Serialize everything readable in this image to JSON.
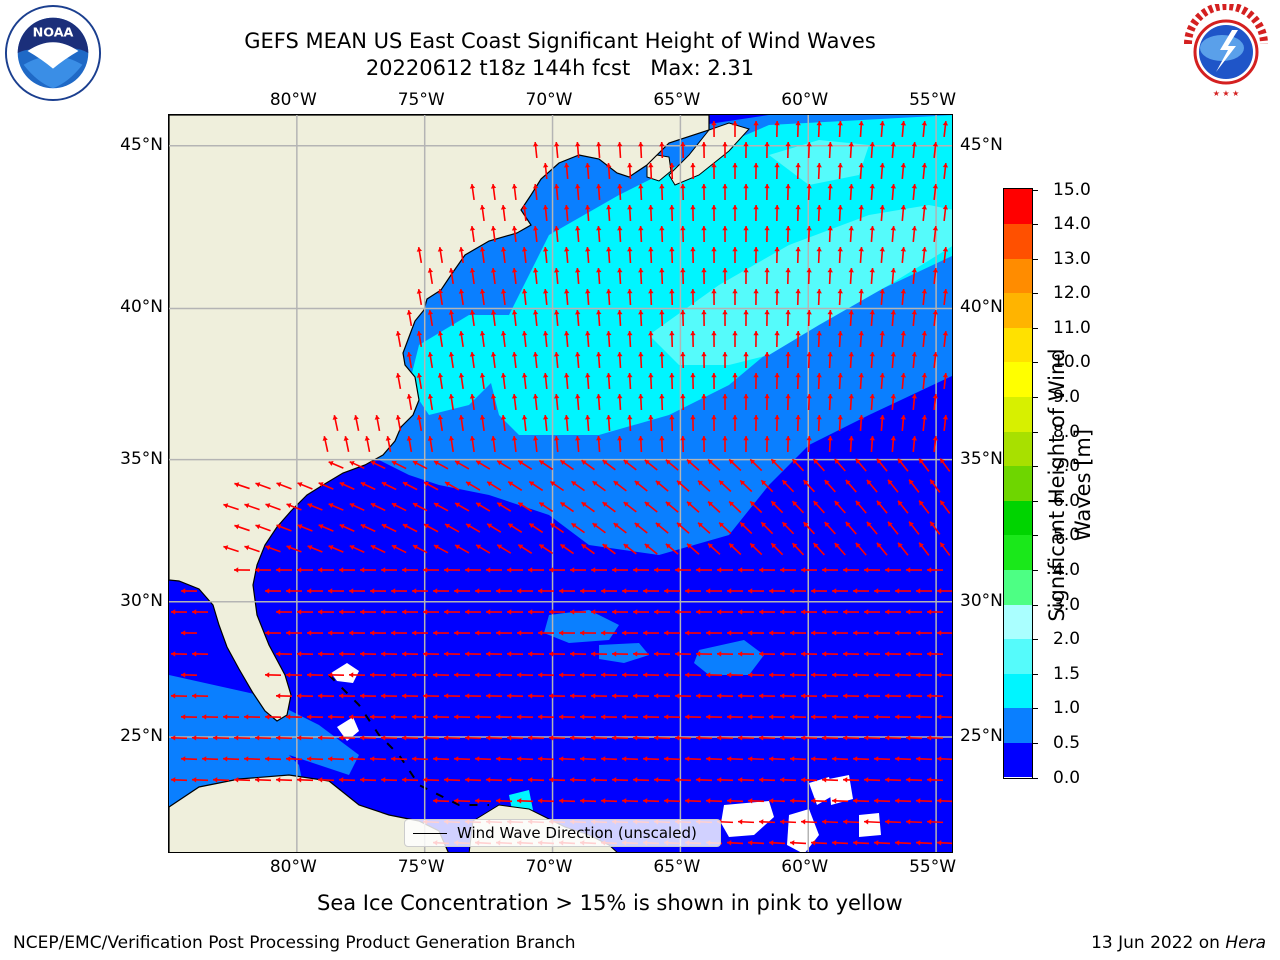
{
  "title": {
    "line1": "GEFS MEAN US East Coast Significant Height of Wind Waves",
    "line2": "20220612 t18z 144h fcst   Max: 2.31"
  },
  "logos": {
    "left": "noaa-logo",
    "left_text": "NOAA",
    "right": "national-weather-service-logo",
    "right_text": "NATIONAL WEATHER SERVICE"
  },
  "axes": {
    "lon_ticks": [
      "80°W",
      "75°W",
      "70°W",
      "65°W",
      "60°W",
      "55°W"
    ],
    "lat_ticks": [
      "45°N",
      "40°N",
      "35°N",
      "30°N",
      "25°N"
    ],
    "lon_values": [
      -80,
      -75,
      -70,
      -65,
      -60,
      -55
    ],
    "lat_values": [
      45,
      40,
      35,
      30,
      25
    ],
    "lon_range": [
      -85,
      -54.3
    ],
    "lat_range": [
      20.5,
      45.9
    ]
  },
  "legend": {
    "label": "Wind Wave Direction (unscaled)"
  },
  "colorbar": {
    "label": "Significant Height of Wind Waves [m]",
    "ticks": [
      "15.0",
      "14.0",
      "13.0",
      "12.0",
      "11.0",
      "10.0",
      "9.0",
      "8.0",
      "7.0",
      "6.0",
      "5.0",
      "4.0",
      "3.0",
      "2.0",
      "1.5",
      "1.0",
      "0.5",
      "0.0"
    ],
    "bounds": [
      0,
      0.5,
      1.0,
      1.5,
      2.0,
      3.0,
      4.0,
      5.0,
      6.0,
      7.0,
      8.0,
      9.0,
      10.0,
      11.0,
      12.0,
      13.0,
      14.0,
      15.0
    ],
    "colors": [
      "#0000ff",
      "#0a7fff",
      "#00f5ff",
      "#55fbfb",
      "#aaffff",
      "#4dff84",
      "#1ae81a",
      "#00d400",
      "#6ed600",
      "#a8e000",
      "#d7f000",
      "#ffff00",
      "#ffe100",
      "#ffb400",
      "#ff8c00",
      "#ff5000",
      "#ff0000"
    ]
  },
  "map_colors": {
    "land": "#efefdc",
    "grid": "#b4b4b4",
    "arrow": "#ff0000",
    "ice_free": "#ffffff"
  },
  "footer": {
    "sea_ice_note": "Sea Ice Concentration > 15% is shown in pink to yellow",
    "branch": "NCEP/EMC/Verification Post Processing Product Generation Branch",
    "date": "13 Jun 2022 on",
    "machine": "Hera"
  }
}
